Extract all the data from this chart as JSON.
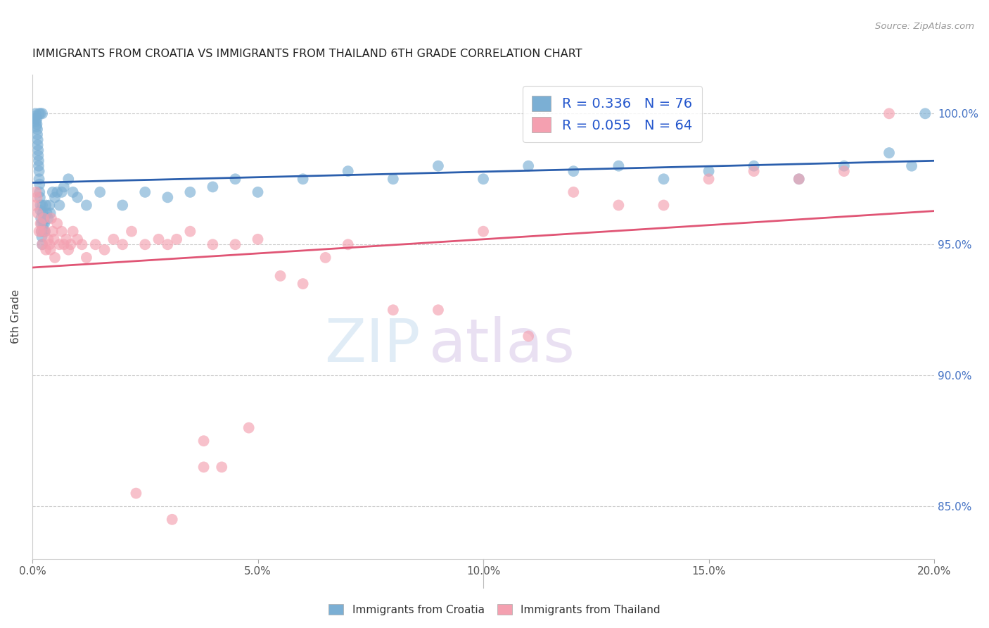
{
  "title": "IMMIGRANTS FROM CROATIA VS IMMIGRANTS FROM THAILAND 6TH GRADE CORRELATION CHART",
  "source": "Source: ZipAtlas.com",
  "ylabel": "6th Grade",
  "xlim": [
    0.0,
    20.0
  ],
  "ylim": [
    83.0,
    101.5
  ],
  "yticks": [
    85.0,
    90.0,
    95.0,
    100.0
  ],
  "ytick_labels": [
    "85.0%",
    "90.0%",
    "95.0%",
    "100.0%"
  ],
  "xticks": [
    0.0,
    5.0,
    10.0,
    15.0,
    20.0
  ],
  "xtick_labels": [
    "0.0%",
    "5.0%",
    "10.0%",
    "15.0%",
    "20.0%"
  ],
  "croatia_R": 0.336,
  "croatia_N": 76,
  "thailand_R": 0.055,
  "thailand_N": 64,
  "croatia_color": "#7bafd4",
  "thailand_color": "#f4a0b0",
  "croatia_line_color": "#2b5fad",
  "thailand_line_color": "#e05575",
  "legend_label_croatia": "Immigrants from Croatia",
  "legend_label_thailand": "Immigrants from Thailand",
  "watermark_zip": "ZIP",
  "watermark_atlas": "atlas",
  "right_tick_color": "#4472c4",
  "croatia_x": [
    0.05,
    0.06,
    0.07,
    0.08,
    0.09,
    0.1,
    0.1,
    0.11,
    0.11,
    0.12,
    0.12,
    0.13,
    0.13,
    0.14,
    0.14,
    0.15,
    0.15,
    0.16,
    0.16,
    0.17,
    0.18,
    0.18,
    0.19,
    0.2,
    0.2,
    0.21,
    0.22,
    0.22,
    0.23,
    0.24,
    0.25,
    0.26,
    0.27,
    0.28,
    0.3,
    0.32,
    0.35,
    0.38,
    0.4,
    0.45,
    0.5,
    0.55,
    0.6,
    0.65,
    0.7,
    0.8,
    0.9,
    1.0,
    1.2,
    1.5,
    2.0,
    2.5,
    3.0,
    3.5,
    4.0,
    4.5,
    5.0,
    6.0,
    7.0,
    8.0,
    9.0,
    10.0,
    11.0,
    12.0,
    13.0,
    14.0,
    15.0,
    16.0,
    17.0,
    18.0,
    19.0,
    19.5,
    19.8,
    0.15,
    0.18,
    0.22
  ],
  "croatia_y": [
    99.8,
    99.9,
    100.0,
    99.7,
    99.5,
    99.8,
    99.6,
    99.4,
    99.2,
    99.0,
    98.8,
    98.6,
    98.4,
    98.2,
    98.0,
    97.8,
    97.5,
    97.3,
    97.0,
    96.8,
    96.5,
    96.3,
    96.0,
    95.8,
    95.5,
    95.3,
    95.0,
    96.5,
    96.2,
    95.8,
    95.5,
    96.0,
    95.8,
    95.5,
    96.5,
    96.2,
    96.0,
    96.5,
    96.2,
    97.0,
    96.8,
    97.0,
    96.5,
    97.0,
    97.2,
    97.5,
    97.0,
    96.8,
    96.5,
    97.0,
    96.5,
    97.0,
    96.8,
    97.0,
    97.2,
    97.5,
    97.0,
    97.5,
    97.8,
    97.5,
    98.0,
    97.5,
    98.0,
    97.8,
    98.0,
    97.5,
    97.8,
    98.0,
    97.5,
    98.0,
    98.5,
    98.0,
    100.0,
    100.0,
    100.0,
    100.0
  ],
  "thailand_x": [
    0.05,
    0.08,
    0.1,
    0.12,
    0.15,
    0.18,
    0.2,
    0.22,
    0.25,
    0.28,
    0.3,
    0.35,
    0.38,
    0.4,
    0.42,
    0.45,
    0.48,
    0.5,
    0.55,
    0.6,
    0.65,
    0.7,
    0.75,
    0.8,
    0.85,
    0.9,
    1.0,
    1.1,
    1.2,
    1.4,
    1.6,
    1.8,
    2.0,
    2.2,
    2.5,
    2.8,
    3.0,
    3.2,
    3.5,
    3.8,
    4.0,
    4.2,
    4.5,
    5.0,
    5.5,
    6.0,
    6.5,
    7.0,
    8.0,
    9.0,
    10.0,
    11.0,
    12.0,
    13.0,
    14.0,
    15.0,
    16.0,
    17.0,
    18.0,
    19.0,
    2.3,
    3.1,
    3.8,
    4.8
  ],
  "thailand_y": [
    96.5,
    97.0,
    96.8,
    96.2,
    95.5,
    95.8,
    95.5,
    95.0,
    96.0,
    95.5,
    94.8,
    95.2,
    95.0,
    94.8,
    96.0,
    95.5,
    95.2,
    94.5,
    95.8,
    95.0,
    95.5,
    95.0,
    95.2,
    94.8,
    95.0,
    95.5,
    95.2,
    95.0,
    94.5,
    95.0,
    94.8,
    95.2,
    95.0,
    95.5,
    95.0,
    95.2,
    95.0,
    95.2,
    95.5,
    87.5,
    95.0,
    86.5,
    95.0,
    95.2,
    93.8,
    93.5,
    94.5,
    95.0,
    92.5,
    92.5,
    95.5,
    91.5,
    97.0,
    96.5,
    96.5,
    97.5,
    97.8,
    97.5,
    97.8,
    100.0,
    85.5,
    84.5,
    86.5,
    88.0
  ]
}
